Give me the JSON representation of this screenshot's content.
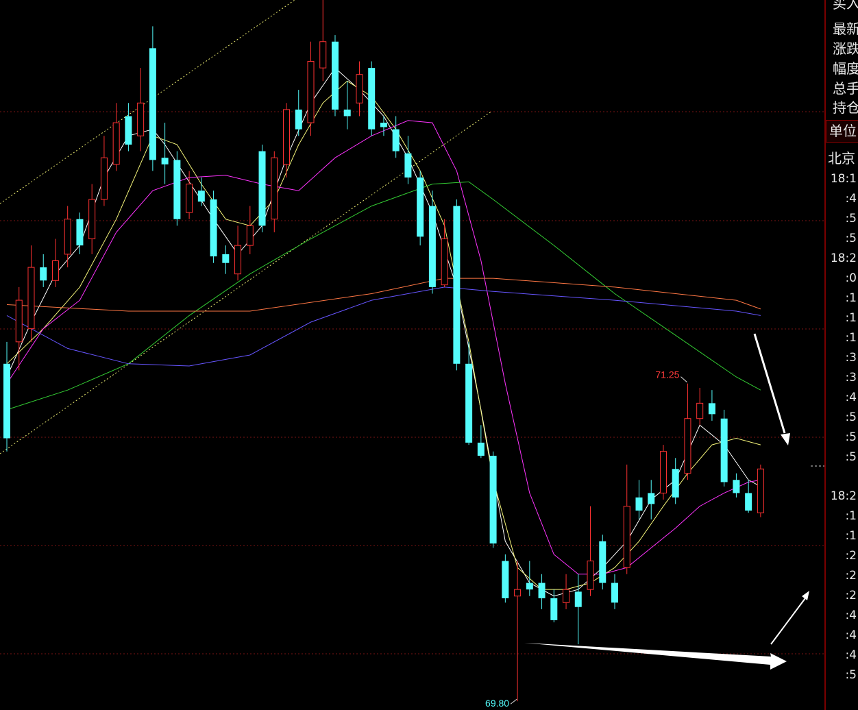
{
  "chart_data": {
    "type": "candlestick",
    "ylim": [
      69.76,
      73.0
    ],
    "up_color": "#ff3232",
    "down_color": "#54fcfc",
    "open": [
      71.34,
      71.44,
      71.5,
      71.78,
      71.72,
      71.84,
      72.0,
      71.91,
      72.09,
      72.25,
      72.47,
      72.38,
      72.78,
      72.28,
      72.27,
      72.03,
      72.13,
      72.09,
      71.84,
      71.75,
      71.88,
      72.31,
      72.0,
      72.25,
      72.5,
      72.44,
      72.69,
      72.81,
      72.5,
      72.53,
      72.69,
      72.44,
      72.41,
      72.3,
      72.19,
      72.06,
      71.7,
      72.06,
      71.34,
      70.98,
      70.92,
      70.44,
      70.28,
      70.34,
      70.34,
      70.27,
      70.25,
      70.3,
      70.31,
      70.53,
      70.34,
      70.41,
      70.73,
      70.75,
      70.75,
      70.86,
      70.84,
      71.09,
      71.16,
      71.09,
      70.81,
      70.75,
      70.66
    ],
    "high": [
      71.44,
      71.69,
      71.88,
      71.84,
      71.91,
      72.06,
      72.03,
      72.16,
      72.38,
      72.53,
      72.53,
      72.69,
      72.88,
      72.44,
      72.31,
      72.22,
      72.19,
      72.13,
      71.88,
      71.97,
      72.06,
      72.34,
      72.31,
      72.53,
      72.59,
      72.81,
      73.0,
      72.84,
      72.63,
      72.72,
      72.72,
      72.47,
      72.47,
      72.38,
      72.22,
      72.13,
      72.0,
      72.09,
      71.44,
      71.06,
      70.94,
      70.47,
      70.44,
      70.44,
      70.38,
      70.31,
      70.38,
      70.38,
      70.69,
      70.56,
      70.38,
      70.88,
      70.81,
      70.81,
      70.97,
      70.91,
      71.25,
      71.23,
      71.22,
      71.13,
      70.84,
      70.81,
      70.88
    ],
    "low": [
      70.94,
      71.31,
      71.44,
      71.69,
      71.69,
      71.78,
      71.84,
      71.84,
      72.06,
      72.22,
      72.31,
      72.31,
      72.22,
      72.16,
      71.97,
      72.0,
      72.06,
      71.8,
      71.75,
      71.72,
      71.84,
      71.94,
      71.94,
      72.19,
      72.38,
      72.38,
      72.63,
      72.47,
      72.41,
      72.47,
      72.38,
      72.38,
      72.28,
      72.16,
      71.88,
      71.66,
      71.69,
      71.31,
      70.97,
      70.91,
      70.5,
      70.25,
      69.8,
      70.28,
      70.22,
      70.16,
      70.22,
      70.06,
      70.28,
      70.31,
      70.22,
      70.38,
      70.63,
      70.63,
      70.72,
      70.7,
      70.81,
      71.06,
      71.08,
      70.78,
      70.73,
      70.66,
      70.64
    ],
    "close": [
      71.0,
      71.63,
      71.78,
      71.72,
      71.81,
      72.0,
      71.88,
      72.09,
      72.28,
      72.44,
      72.34,
      72.53,
      72.27,
      72.25,
      72.0,
      72.16,
      72.08,
      71.83,
      71.8,
      71.88,
      71.97,
      71.97,
      72.28,
      72.5,
      72.41,
      72.72,
      72.81,
      72.5,
      72.47,
      72.66,
      72.41,
      72.42,
      72.31,
      72.19,
      71.92,
      71.69,
      71.91,
      71.34,
      70.98,
      70.92,
      70.52,
      70.27,
      70.31,
      70.31,
      70.27,
      70.17,
      70.31,
      70.23,
      70.44,
      70.34,
      70.25,
      70.69,
      70.67,
      70.7,
      70.94,
      70.73,
      71.09,
      71.16,
      71.11,
      70.8,
      70.75,
      70.67,
      70.86
    ],
    "series": [
      {
        "color": "#ffffff",
        "x": [
          0,
          2,
          4,
          6,
          8,
          10,
          12,
          13,
          15,
          17,
          19,
          21,
          23,
          25,
          27,
          29,
          31,
          33,
          35,
          37,
          39,
          41,
          43,
          45,
          47,
          49,
          51,
          53,
          55,
          57,
          59,
          61,
          62
        ],
        "values": [
          71.28,
          71.53,
          71.75,
          71.88,
          72.19,
          72.38,
          72.41,
          72.34,
          72.17,
          72.0,
          71.84,
          71.97,
          72.28,
          72.53,
          72.69,
          72.59,
          72.47,
          72.28,
          72.03,
          71.69,
          71.13,
          70.53,
          70.34,
          70.28,
          70.31,
          70.41,
          70.53,
          70.72,
          70.81,
          71.06,
          70.97,
          70.81,
          70.78
        ]
      },
      {
        "color": "#f5f57a",
        "x": [
          0,
          3,
          6,
          9,
          12,
          14,
          16,
          18,
          20,
          22,
          24,
          26,
          28,
          30,
          32,
          34,
          36,
          38,
          40,
          42,
          44,
          46,
          48,
          50,
          52,
          54,
          56,
          58,
          60,
          62
        ],
        "values": [
          71.34,
          71.5,
          71.69,
          72.0,
          72.38,
          72.34,
          72.16,
          72.0,
          71.97,
          72.09,
          72.34,
          72.53,
          72.63,
          72.56,
          72.41,
          72.22,
          71.97,
          71.44,
          70.81,
          70.41,
          70.31,
          70.31,
          70.34,
          70.41,
          70.53,
          70.69,
          70.84,
          70.97,
          71.0,
          70.97
        ]
      },
      {
        "color": "#ff33ff",
        "x": [
          0,
          3,
          6,
          9,
          12,
          15,
          18,
          21,
          24,
          27,
          30,
          33,
          35,
          37,
          39,
          41,
          43,
          45,
          47,
          49,
          51,
          53,
          55,
          57,
          59,
          61,
          62
        ],
        "values": [
          71.25,
          71.5,
          71.63,
          71.94,
          72.13,
          72.19,
          72.2,
          72.16,
          72.13,
          72.28,
          72.38,
          72.45,
          72.44,
          72.22,
          71.81,
          71.25,
          70.75,
          70.47,
          70.38,
          70.38,
          70.41,
          70.5,
          70.59,
          70.69,
          70.75,
          70.8,
          70.81
        ]
      },
      {
        "color": "#33cc33",
        "x": [
          0,
          5,
          10,
          15,
          20,
          25,
          30,
          35,
          38,
          40,
          45,
          50,
          55,
          60,
          62
        ],
        "values": [
          71.13,
          71.22,
          71.34,
          71.56,
          71.75,
          71.91,
          72.06,
          72.16,
          72.17,
          72.09,
          71.88,
          71.66,
          71.47,
          71.28,
          71.22
        ]
      },
      {
        "color": "#ff7744",
        "x": [
          0,
          10,
          20,
          30,
          36,
          40,
          50,
          60,
          62
        ],
        "values": [
          71.61,
          71.58,
          71.58,
          71.66,
          71.73,
          71.73,
          71.69,
          71.63,
          71.59
        ]
      },
      {
        "color": "#6655ff",
        "x": [
          0,
          5,
          10,
          15,
          20,
          25,
          30,
          36,
          40,
          50,
          60,
          62
        ],
        "values": [
          71.56,
          71.41,
          71.34,
          71.33,
          71.38,
          71.53,
          71.63,
          71.69,
          71.67,
          71.63,
          71.58,
          71.56
        ]
      }
    ],
    "annotations": [
      {
        "value": 71.25,
        "color": "#ff3b3b"
      },
      {
        "value": 69.8,
        "label": "69.80",
        "color": "#54fcfc"
      }
    ]
  },
  "panel": {
    "labels": [
      "买入",
      "最新",
      "涨跌",
      "幅度",
      "总手",
      "持仓"
    ],
    "unit": "单位",
    "city": "北京",
    "times": [
      [
        "18:1",
        ":4",
        ":5",
        ":5",
        "18:2",
        ":0",
        ":1",
        ":1",
        ":1",
        ":3",
        ":3",
        ":4",
        ":5",
        ":5",
        ":5"
      ],
      [
        "18:2",
        ":1",
        ":1",
        ":2",
        ":2",
        ":2",
        ":4",
        ":4",
        ":4",
        ":5"
      ]
    ]
  }
}
